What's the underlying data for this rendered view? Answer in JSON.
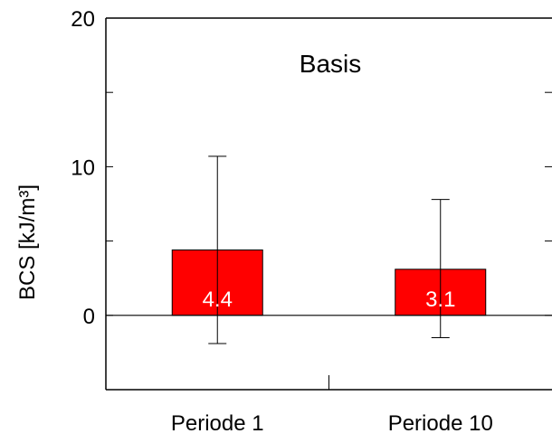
{
  "chart_data": {
    "type": "bar",
    "title": "Basis",
    "ylabel": "BCS [kJ/m³]",
    "xlabel": "",
    "categories": [
      "Periode 1",
      "Periode 10"
    ],
    "values": [
      4.4,
      3.1
    ],
    "value_labels": [
      "4.4",
      "3.1"
    ],
    "error_low": [
      -1.9,
      -1.5
    ],
    "error_high": [
      10.7,
      7.8
    ],
    "ylim": [
      -5,
      20
    ],
    "yticks": [
      0,
      10,
      20
    ],
    "ytick_labels": [
      "0",
      "10",
      "20"
    ],
    "grid": false,
    "bar_color": "#ff0000",
    "value_label_color": "#ffffff"
  }
}
